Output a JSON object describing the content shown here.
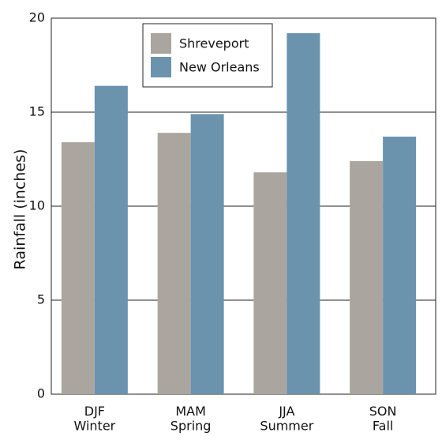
{
  "chart_data": {
    "type": "bar",
    "y_label": "Rainfall (inches)",
    "categories": [
      "DJF\nWinter",
      "MAM\nSpring",
      "JJA\nSummer",
      "SON\nFall"
    ],
    "series": [
      {
        "name": "Shreveport",
        "color": "#aaa69f",
        "values": [
          13.4,
          13.9,
          11.8,
          12.4
        ]
      },
      {
        "name": "New Orleans",
        "color": "#6b93ae",
        "values": [
          16.4,
          14.9,
          19.2,
          13.7
        ]
      }
    ],
    "ylim": [
      0,
      20
    ],
    "yticks": [
      0,
      5,
      10,
      15,
      20
    ],
    "grid": true,
    "legend": "top"
  }
}
